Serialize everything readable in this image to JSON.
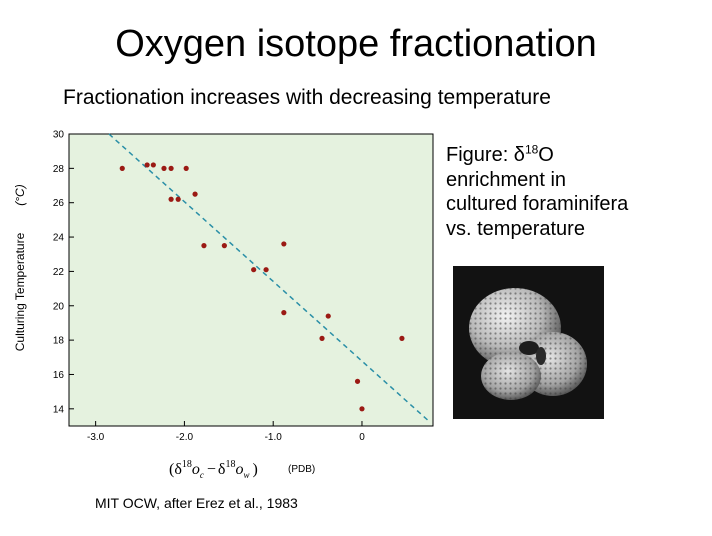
{
  "slide": {
    "title": "Oxygen isotope fractionation",
    "subtitle": "Fractionation increases with decreasing temperature",
    "caption_line1_pre": "Figure: δ",
    "caption_sup": "18",
    "caption_line1_post": "O",
    "caption_line2": "enrichment in",
    "caption_line3": "cultured foraminifera",
    "caption_line4": "vs. temperature",
    "credit": "MIT OCW, after Erez et al., 1983",
    "photo_icon": "foraminifera-photo"
  },
  "chart_data": {
    "type": "scatter",
    "title": "",
    "xlabel_math": {
      "delta": "δ",
      "sup": "18",
      "o": "o",
      "sub_c": "c",
      "sub_w": "w",
      "open": "(",
      "minus": "−",
      "close": ")"
    },
    "xlabel_unit": "(PDB)",
    "ylabel": "Culturing Temperature",
    "ylabel_unit": "(°C)",
    "xlim": [
      -3.3,
      0.8
    ],
    "ylim": [
      13,
      30
    ],
    "x_ticks": [
      -3.0,
      -2.0,
      -1.0,
      0
    ],
    "x_tick_labels": [
      "-3.0",
      "-2.0",
      "-1.0",
      "0"
    ],
    "y_ticks": [
      14,
      16,
      18,
      20,
      22,
      24,
      26,
      28,
      30
    ],
    "y_tick_labels": [
      "14",
      "16",
      "18",
      "20",
      "22",
      "24",
      "26",
      "28",
      "30"
    ],
    "points": [
      {
        "x": -2.7,
        "y": 28.0
      },
      {
        "x": -2.42,
        "y": 28.2
      },
      {
        "x": -2.35,
        "y": 28.2
      },
      {
        "x": -2.23,
        "y": 28.0
      },
      {
        "x": -2.15,
        "y": 28.0
      },
      {
        "x": -1.98,
        "y": 28.0
      },
      {
        "x": -2.15,
        "y": 26.2
      },
      {
        "x": -2.07,
        "y": 26.2
      },
      {
        "x": -1.88,
        "y": 26.5
      },
      {
        "x": -1.78,
        "y": 23.5
      },
      {
        "x": -1.55,
        "y": 23.5
      },
      {
        "x": -1.22,
        "y": 22.1
      },
      {
        "x": -1.08,
        "y": 22.1
      },
      {
        "x": -0.88,
        "y": 23.6
      },
      {
        "x": -0.88,
        "y": 19.6
      },
      {
        "x": -0.38,
        "y": 19.4
      },
      {
        "x": -0.45,
        "y": 18.1
      },
      {
        "x": -0.05,
        "y": 15.6
      },
      {
        "x": 0.0,
        "y": 14.0
      },
      {
        "x": 0.45,
        "y": 18.1
      }
    ],
    "trendline": {
      "x1": -2.85,
      "y1": 30,
      "x2": 0.75,
      "y2": 13.3
    },
    "plot_bg_color": "#e5f2df",
    "point_color": "#9b1a14",
    "trend_color": "#2a8fa7",
    "grid": false
  }
}
